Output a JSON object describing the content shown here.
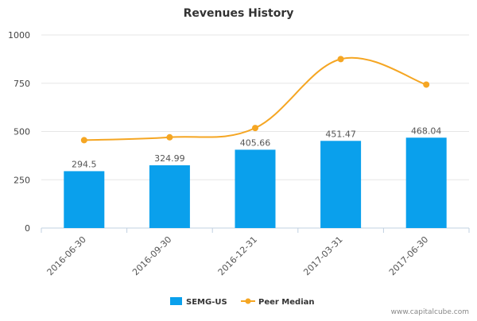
{
  "chart_data": {
    "type": "bar",
    "title": "Revenues History",
    "categories": [
      "2016-06-30",
      "2016-09-30",
      "2016-12-31",
      "2017-03-31",
      "2017-06-30"
    ],
    "series": [
      {
        "name": "SEMG-US",
        "kind": "bar",
        "color": "#0aa0ec",
        "values": [
          294.5,
          324.99,
          405.66,
          451.47,
          468.04
        ],
        "labels": [
          "294.5",
          "324.99",
          "405.66",
          "451.47",
          "468.04"
        ]
      },
      {
        "name": "Peer Median",
        "kind": "line",
        "color": "#f5a623",
        "values": [
          455,
          470,
          518,
          875,
          743
        ]
      }
    ],
    "ylim": [
      0,
      1000
    ],
    "yticks": [
      0,
      250,
      500,
      750,
      1000
    ],
    "ytick_labels": [
      "0",
      "250",
      "500",
      "750",
      "1000"
    ],
    "grid": true,
    "legend_position": "bottom-center"
  },
  "footer": {
    "credit": "www.capitalcube.com"
  }
}
